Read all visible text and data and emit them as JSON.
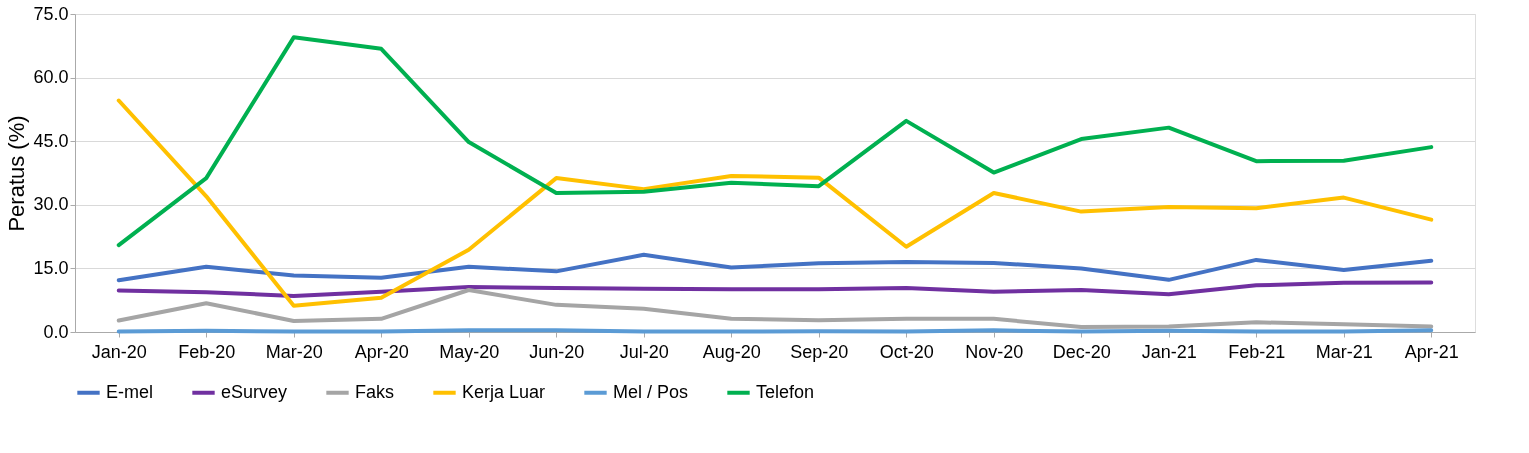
{
  "chart_data": {
    "type": "line",
    "ylabel": "Peratus (%)",
    "categories": [
      "Jan-20",
      "Feb-20",
      "Mar-20",
      "Apr-20",
      "May-20",
      "Jun-20",
      "Jul-20",
      "Aug-20",
      "Sep-20",
      "Oct-20",
      "Nov-20",
      "Dec-20",
      "Jan-21",
      "Feb-21",
      "Mar-21",
      "Apr-21"
    ],
    "series": [
      {
        "name": "E-mel",
        "color": "#4472c4",
        "values": [
          12.2,
          15.4,
          13.3,
          12.8,
          15.4,
          14.3,
          18.2,
          15.2,
          16.2,
          16.5,
          16.3,
          15.0,
          12.3,
          17.0,
          14.6,
          16.8
        ]
      },
      {
        "name": "eSurvey",
        "color": "#7030a0",
        "values": [
          9.8,
          9.4,
          8.5,
          9.5,
          10.6,
          10.4,
          10.2,
          10.1,
          10.1,
          10.4,
          9.5,
          9.9,
          8.9,
          11.0,
          11.6,
          11.7
        ]
      },
      {
        "name": "Faks",
        "color": "#a5a5a5",
        "values": [
          2.7,
          6.8,
          2.6,
          3.1,
          9.9,
          6.4,
          5.5,
          3.1,
          2.8,
          3.1,
          3.1,
          1.2,
          1.3,
          2.3,
          1.8,
          1.3
        ]
      },
      {
        "name": "Kerja Luar",
        "color": "#ffc000",
        "values": [
          54.6,
          32.0,
          6.2,
          8.1,
          19.4,
          36.3,
          33.7,
          36.8,
          36.4,
          20.1,
          32.8,
          28.4,
          29.5,
          29.2,
          31.7,
          26.5
        ]
      },
      {
        "name": "Mel / Pos",
        "color": "#5b9bd5",
        "values": [
          0.1,
          0.3,
          0.1,
          0.1,
          0.4,
          0.4,
          0.1,
          0.1,
          0.2,
          0.1,
          0.4,
          0.1,
          0.3,
          0.1,
          0.1,
          0.4
        ]
      },
      {
        "name": "Telefon",
        "color": "#00b050",
        "values": [
          20.5,
          36.3,
          69.5,
          66.8,
          44.8,
          32.8,
          33.1,
          35.2,
          34.4,
          49.8,
          37.6,
          45.5,
          48.2,
          40.3,
          40.4,
          43.6
        ]
      }
    ],
    "ylim": [
      0,
      75
    ],
    "yticks": [
      {
        "value": 0,
        "label": "0.0"
      },
      {
        "value": 15,
        "label": "15.0"
      },
      {
        "value": 30,
        "label": "30.0"
      },
      {
        "value": 45,
        "label": "45.0"
      },
      {
        "value": 60,
        "label": "60.0"
      },
      {
        "value": 75,
        "label": "75.0"
      }
    ],
    "grid": "y",
    "legend": "bottom",
    "line_style": "solid"
  }
}
